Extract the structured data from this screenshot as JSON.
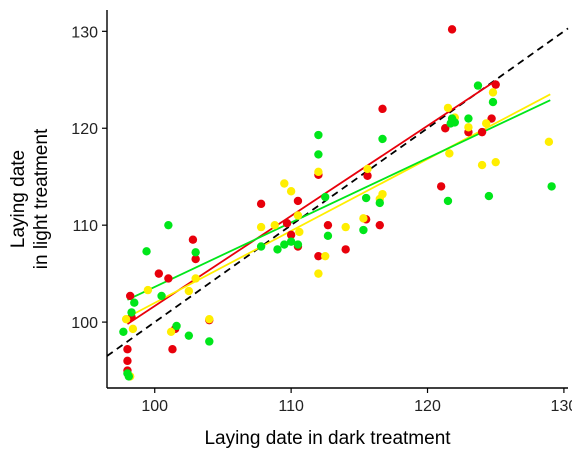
{
  "chart_data": {
    "type": "scatter",
    "xlabel": "Laying date in dark treatment",
    "ylabel_lines": [
      "Laying date",
      "in light treatment"
    ],
    "xlim": [
      96.5,
      130.3
    ],
    "ylim": [
      93.2,
      132.2
    ],
    "x_ticks": [
      100,
      110,
      120,
      130
    ],
    "y_ticks": [
      100,
      110,
      120,
      130
    ],
    "grid": false,
    "colors": {
      "red": "#e8000b",
      "yellow": "#ffee00",
      "green": "#00e61a",
      "identity": "#000000"
    },
    "identity_line": {
      "style": "dashed",
      "from": [
        96.5,
        96.5
      ],
      "to": [
        130.3,
        130.3
      ]
    },
    "series": [
      {
        "color": "red",
        "points": [
          [
            98,
            95
          ],
          [
            98,
            96
          ],
          [
            98,
            97.2
          ],
          [
            98.2,
            102.7
          ],
          [
            98.3,
            100.5
          ],
          [
            100.3,
            105
          ],
          [
            101,
            104.5
          ],
          [
            101.3,
            97.2
          ],
          [
            101.5,
            99.3
          ],
          [
            102.8,
            108.5
          ],
          [
            103,
            106.5
          ],
          [
            104,
            100.2
          ],
          [
            107.8,
            112.2
          ],
          [
            109.7,
            110.2
          ],
          [
            110,
            109
          ],
          [
            110.5,
            112.5
          ],
          [
            110.5,
            107.8
          ],
          [
            112,
            106.8
          ],
          [
            112,
            115.2
          ],
          [
            112.7,
            110
          ],
          [
            114,
            107.5
          ],
          [
            115.6,
            115.1
          ],
          [
            115.5,
            110.6
          ],
          [
            116.5,
            110
          ],
          [
            116.7,
            122
          ],
          [
            121,
            114
          ],
          [
            121.3,
            120
          ],
          [
            121.8,
            130.2
          ],
          [
            123,
            119.6
          ],
          [
            124,
            119.6
          ],
          [
            124.7,
            121
          ],
          [
            125,
            124.5
          ]
        ],
        "fit": {
          "from": [
            98,
            99.8
          ],
          "to": [
            125,
            124.9
          ]
        }
      },
      {
        "color": "yellow",
        "points": [
          [
            97.9,
            100.3
          ],
          [
            98.2,
            94.4
          ],
          [
            98.4,
            99.3
          ],
          [
            99.5,
            103.3
          ],
          [
            101.2,
            99
          ],
          [
            102.5,
            103.2
          ],
          [
            103,
            104.5
          ],
          [
            104,
            100.3
          ],
          [
            107.8,
            109.8
          ],
          [
            108.8,
            110
          ],
          [
            109.5,
            114.3
          ],
          [
            110,
            113.5
          ],
          [
            110.5,
            111
          ],
          [
            110.6,
            109.3
          ],
          [
            112,
            115.5
          ],
          [
            112,
            105
          ],
          [
            112.5,
            106.8
          ],
          [
            114,
            109.8
          ],
          [
            115.3,
            110.7
          ],
          [
            115.6,
            115.8
          ],
          [
            116.5,
            112.7
          ],
          [
            116.7,
            113.2
          ],
          [
            121.5,
            122.1
          ],
          [
            121.6,
            117.4
          ],
          [
            122,
            121.1
          ],
          [
            123,
            120.1
          ],
          [
            124,
            116.2
          ],
          [
            124.3,
            120.5
          ],
          [
            124.8,
            123.7
          ],
          [
            125,
            116.5
          ],
          [
            128.9,
            118.6
          ]
        ],
        "fit": {
          "from": [
            98,
            100.5
          ],
          "to": [
            129,
            123.5
          ]
        }
      },
      {
        "color": "green",
        "points": [
          [
            97.7,
            99
          ],
          [
            98,
            94.7
          ],
          [
            98.1,
            94.4
          ],
          [
            98.3,
            101
          ],
          [
            98.5,
            102
          ],
          [
            99.4,
            107.3
          ],
          [
            100.5,
            102.7
          ],
          [
            101,
            110
          ],
          [
            101.6,
            99.6
          ],
          [
            102.5,
            98.6
          ],
          [
            103,
            107.2
          ],
          [
            104,
            98
          ],
          [
            107.8,
            107.8
          ],
          [
            109,
            107.5
          ],
          [
            109.5,
            108
          ],
          [
            110,
            108.3
          ],
          [
            110.5,
            108
          ],
          [
            112,
            119.3
          ],
          [
            112,
            117.3
          ],
          [
            112.5,
            112.9
          ],
          [
            112.7,
            108.9
          ],
          [
            115.3,
            109.5
          ],
          [
            115.5,
            112.8
          ],
          [
            116.5,
            112.3
          ],
          [
            116.7,
            118.9
          ],
          [
            121.5,
            112.5
          ],
          [
            121.7,
            120.5
          ],
          [
            121.8,
            121
          ],
          [
            122,
            120.6
          ],
          [
            123,
            121
          ],
          [
            123.7,
            124.4
          ],
          [
            124.5,
            113
          ],
          [
            124.8,
            122.7
          ],
          [
            129.1,
            114
          ]
        ],
        "fit": {
          "from": [
            98,
            102.3
          ],
          "to": [
            129,
            122.9
          ]
        }
      }
    ]
  }
}
